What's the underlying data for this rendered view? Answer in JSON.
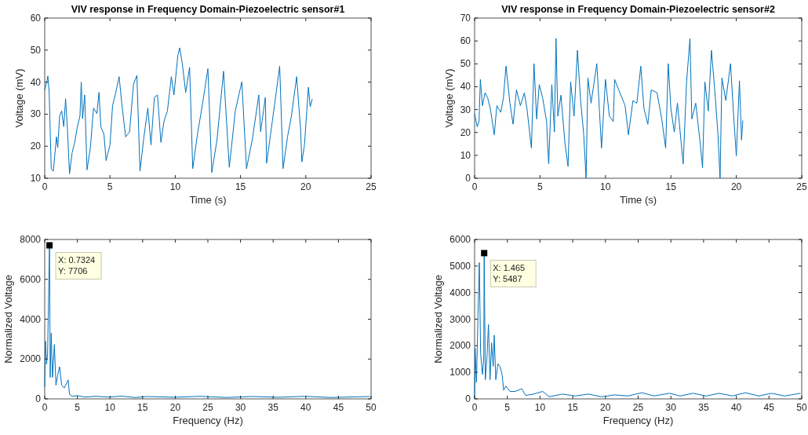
{
  "chart_data": [
    {
      "type": "line",
      "title": "VIV response in Frequency Domain-Piezoelectric sensor#1",
      "xlabel": "Time (s)",
      "ylabel": "Voltage (mV)",
      "xlim": [
        0,
        25
      ],
      "xticks": [
        0,
        5,
        10,
        15,
        20,
        25
      ],
      "ylim": [
        10,
        60
      ],
      "yticks": [
        10,
        20,
        30,
        40,
        50,
        60
      ],
      "grid": false,
      "series": [
        {
          "color": "#0072bd",
          "x": [
            0,
            0.14,
            0.24,
            0.34,
            0.5,
            0.66,
            0.9,
            1.0,
            1.14,
            1.3,
            1.46,
            1.6,
            1.74,
            1.9,
            2.1,
            2.3,
            2.5,
            2.7,
            2.8,
            2.9,
            3.06,
            3.24,
            3.5,
            3.74,
            4,
            4.16,
            4.3,
            4.54,
            4.7,
            5,
            5.2,
            5.4,
            5.7,
            5.9,
            6.2,
            6.5,
            6.8,
            7.06,
            7.3,
            7.6,
            7.9,
            8.14,
            8.4,
            8.64,
            8.9,
            9.14,
            9.4,
            9.7,
            9.9,
            10.2,
            10.34,
            10.54,
            10.8,
            11.1,
            11.34,
            11.7,
            12.1,
            12.5,
            12.8,
            13.2,
            13.7,
            14.14,
            14.6,
            15.1,
            15.46,
            15.9,
            16.4,
            16.54,
            16.9,
            17,
            17.3,
            17.6,
            18,
            18.26,
            18.6,
            18.9,
            19.3,
            19.6,
            19.7,
            19.9,
            20.2,
            20.34,
            20.5
          ],
          "values": [
            37.6,
            39.7,
            41.9,
            36.8,
            13,
            12.2,
            22.9,
            19.6,
            29.4,
            31,
            26.1,
            34.8,
            25.3,
            11.4,
            18,
            21.2,
            26.1,
            29.4,
            40,
            28.6,
            36,
            12.6,
            19.6,
            31.9,
            30.2,
            36.8,
            26.1,
            23.7,
            15.5,
            20.4,
            32.7,
            36,
            41.7,
            33.5,
            22.9,
            24.5,
            39.3,
            42.1,
            12.2,
            22.9,
            31.9,
            20.4,
            35.2,
            36,
            21.2,
            27.8,
            31,
            41.7,
            36,
            48.3,
            50.7,
            45.8,
            36.8,
            44.6,
            13,
            23.7,
            33.5,
            44.2,
            11.8,
            22,
            43.4,
            13.4,
            31,
            40.1,
            13,
            22,
            36,
            24.5,
            35.2,
            14.7,
            23.7,
            32.7,
            45,
            13,
            22.9,
            29.4,
            41.7,
            25.3,
            15.1,
            20.4,
            38.4,
            32.3,
            34.8
          ]
        }
      ]
    },
    {
      "type": "line",
      "title": "VIV response in Frequency Domain-Piezoelectric sensor#2",
      "xlabel": "Time (s)",
      "ylabel": "Voltage (mV)",
      "xlim": [
        0,
        25
      ],
      "xticks": [
        0,
        5,
        10,
        15,
        20,
        25
      ],
      "ylim": [
        0,
        70
      ],
      "yticks": [
        0,
        10,
        20,
        30,
        40,
        50,
        60,
        70
      ],
      "grid": false,
      "series": [
        {
          "color": "#0072bd",
          "x": [
            0,
            0.2,
            0.34,
            0.44,
            0.6,
            0.8,
            1,
            1.2,
            1.5,
            1.7,
            2,
            2.2,
            2.4,
            2.7,
            2.94,
            3.2,
            3.5,
            3.8,
            4,
            4.34,
            4.54,
            4.74,
            4.94,
            5.2,
            5.5,
            5.66,
            5.9,
            6.1,
            6.22,
            6.36,
            6.6,
            6.9,
            7.14,
            7.34,
            7.6,
            7.86,
            8.1,
            8.34,
            8.52,
            8.66,
            8.9,
            9.34,
            9.7,
            10,
            10.3,
            10.6,
            10.7,
            11.1,
            11.5,
            11.76,
            12.1,
            12.4,
            12.7,
            12.94,
            13.24,
            13.5,
            13.94,
            14.3,
            14.6,
            14.8,
            15,
            15.26,
            15.5,
            15.94,
            16.2,
            16.46,
            16.6,
            16.9,
            17.26,
            17.42,
            17.6,
            17.86,
            18.1,
            18.4,
            18.6,
            18.76,
            18.9,
            19.2,
            19.56,
            19.8,
            20,
            20.24,
            20.4,
            20.5
          ],
          "values": [
            28.2,
            22.5,
            24.8,
            43.2,
            31.7,
            37.4,
            35.1,
            30.5,
            19,
            31.7,
            28.8,
            35.1,
            49,
            32.8,
            23.6,
            38.6,
            31.7,
            37.3,
            30.5,
            13.2,
            50.1,
            25.9,
            40.9,
            35.1,
            24.8,
            6.3,
            40.9,
            20.2,
            61.1,
            27.1,
            36.3,
            15.6,
            5.2,
            42.1,
            27.1,
            55.9,
            34,
            19,
            0,
            43.8,
            32.8,
            50.1,
            13.2,
            43.2,
            27.1,
            24.8,
            43.2,
            37.4,
            31.7,
            19,
            33.9,
            32.8,
            49,
            30.5,
            23.6,
            38.6,
            37.4,
            25.9,
            13.2,
            50.1,
            30.5,
            20.2,
            32.8,
            6.3,
            42.1,
            61.1,
            25.9,
            32.8,
            14.4,
            4.6,
            42.1,
            29.4,
            55.9,
            35.1,
            19,
            0,
            43.8,
            34,
            50.1,
            27.1,
            9.8,
            42.6,
            16.7,
            25.3
          ]
        }
      ]
    },
    {
      "type": "line",
      "xlabel": "Frequency (Hz)",
      "ylabel": "Normalized Voltage",
      "xlim": [
        0,
        50
      ],
      "xticks": [
        0,
        5,
        10,
        15,
        20,
        25,
        30,
        35,
        40,
        45,
        50
      ],
      "ylim": [
        0,
        8000
      ],
      "yticks": [
        0,
        2000,
        4000,
        6000,
        8000
      ],
      "grid": false,
      "annotations": [
        {
          "text": "X: 0.7324\nY: 7706",
          "x": 0.7324,
          "y": 7706
        }
      ],
      "series": [
        {
          "color": "#0072bd",
          "x": [
            0,
            0.12,
            0.28,
            0.44,
            0.7324,
            0.84,
            1,
            1.2,
            1.48,
            1.72,
            2,
            2.28,
            2.6,
            3,
            3.6,
            3.8,
            4.2,
            5,
            6.2,
            7.8,
            9.8,
            11.8,
            13.8,
            15.8,
            19.8,
            23.8,
            27.8,
            31.8,
            35.8,
            39.8,
            43.8,
            49.8
          ],
          "values": [
            600,
            2900,
            1740,
            2270,
            7706,
            1080,
            3300,
            1080,
            2730,
            690,
            1210,
            1610,
            690,
            550,
            950,
            220,
            130,
            160,
            90,
            130,
            90,
            140,
            70,
            120,
            80,
            130,
            70,
            120,
            80,
            130,
            70,
            120
          ]
        }
      ]
    },
    {
      "type": "line",
      "xlabel": "Frequency (Hz)",
      "ylabel": "Normalized Voltage",
      "xlim": [
        0,
        50
      ],
      "xticks": [
        0,
        5,
        10,
        15,
        20,
        25,
        30,
        35,
        40,
        45,
        50
      ],
      "ylim": [
        0,
        6000
      ],
      "yticks": [
        0,
        1000,
        2000,
        3000,
        4000,
        5000,
        6000
      ],
      "grid": false,
      "annotations": [
        {
          "text": "X: 1.465\nY: 5487",
          "x": 1.465,
          "y": 5487
        }
      ],
      "series": [
        {
          "color": "#0072bd",
          "x": [
            0,
            0.08,
            0.28,
            0.52,
            0.72,
            0.92,
            1.2,
            1.4,
            1.465,
            1.64,
            1.88,
            2.12,
            2.36,
            2.6,
            2.84,
            3,
            3.24,
            3.56,
            3.88,
            4.2,
            4.44,
            4.8,
            5.4,
            6.2,
            7.2,
            7.8,
            9,
            10.4,
            11.4,
            13.4,
            15.4,
            17.4,
            19.4,
            21.4,
            23.4,
            25.6,
            27.4,
            29.8,
            31.4,
            33.4,
            35.4,
            37.4,
            39.4,
            41.4,
            43.4,
            45.4,
            47.4,
            49.8
          ],
          "values": [
            30,
            1910,
            620,
            3200,
            5130,
            1710,
            920,
            1510,
            5487,
            720,
            1510,
            2800,
            720,
            2110,
            1220,
            2400,
            720,
            1320,
            1220,
            920,
            330,
            480,
            280,
            280,
            380,
            130,
            180,
            280,
            80,
            180,
            110,
            180,
            80,
            150,
            110,
            230,
            110,
            210,
            110,
            210,
            110,
            210,
            110,
            230,
            110,
            210,
            110,
            210
          ]
        }
      ]
    }
  ]
}
